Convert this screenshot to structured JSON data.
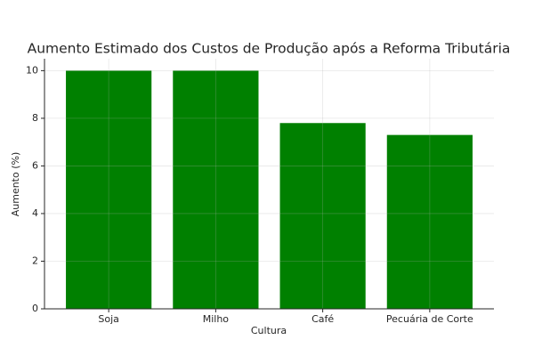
{
  "chart_data": {
    "type": "bar",
    "title": "Aumento Estimado dos Custos de Produção após a Reforma Tributária",
    "x_label": "Cultura",
    "y_label": "Aumento (%)",
    "categories": [
      "Soja",
      "Milho",
      "Café",
      "Pecuária de Corte"
    ],
    "values": [
      10,
      10,
      7.8,
      7.3
    ],
    "color": "#008000",
    "ylim": [
      0,
      10.5
    ],
    "yticks": [
      0,
      2,
      4,
      6,
      8,
      10
    ],
    "grid": true
  }
}
